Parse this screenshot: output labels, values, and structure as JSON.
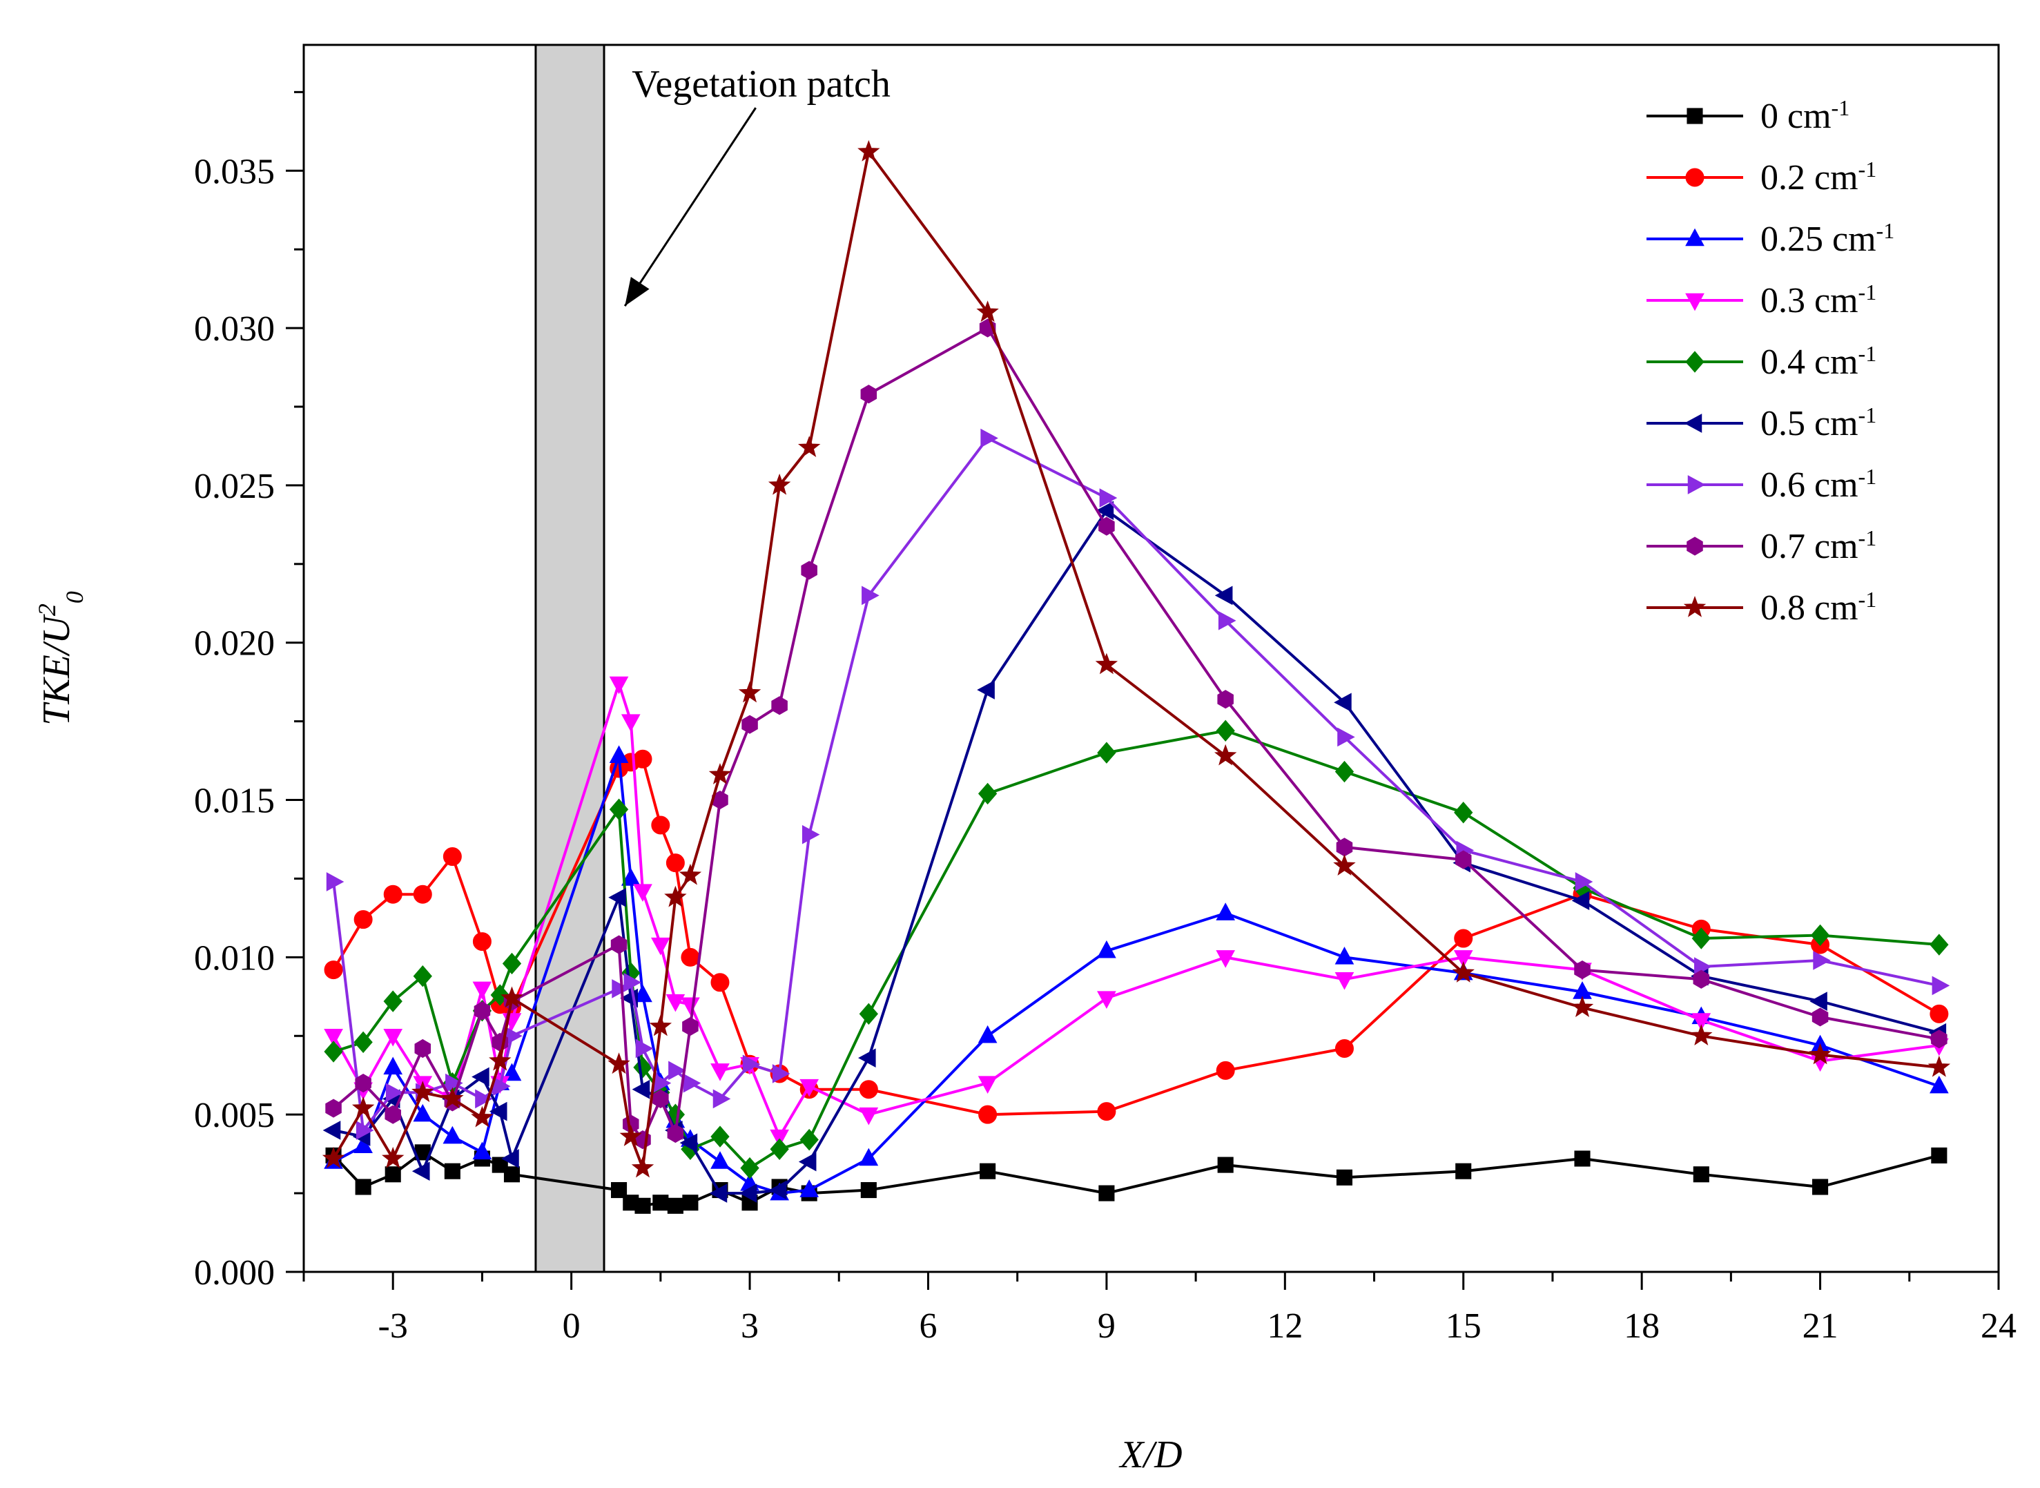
{
  "chart_data": {
    "type": "line",
    "xlabel": "X/D",
    "ylabel_main": "TKE/U",
    "ylabel_sup": "2",
    "ylabel_sub": "0",
    "xlim": [
      -4.5,
      24
    ],
    "ylim": [
      0,
      0.039
    ],
    "xticks": [
      -3,
      0,
      3,
      6,
      9,
      12,
      15,
      18,
      21,
      24
    ],
    "xtick_labels": [
      "-3",
      "0",
      "3",
      "6",
      "9",
      "12",
      "15",
      "18",
      "21",
      "24"
    ],
    "yticks": [
      0,
      0.005,
      0.01,
      0.015,
      0.02,
      0.025,
      0.03,
      0.035
    ],
    "ytick_labels": [
      "0.000",
      "0.005",
      "0.010",
      "0.015",
      "0.020",
      "0.025",
      "0.030",
      "0.035"
    ],
    "patch": {
      "label": "Vegetation patch",
      "x_from": -0.6,
      "x_to": 0.55,
      "color": "#d0d0d0"
    },
    "annotation": {
      "text": "Vegetation patch",
      "arrow_from": [
        3.1,
        0.037
      ],
      "arrow_to": [
        0.9,
        0.0307
      ]
    },
    "series": [
      {
        "name": "0 cm",
        "unit_sup": "-1",
        "color": "#000000",
        "marker": "square",
        "x": [
          -4,
          -3.5,
          -3,
          -2.5,
          -2,
          -1.5,
          -1.2,
          -1,
          0.8,
          1,
          1.2,
          1.5,
          1.75,
          2,
          2.5,
          3,
          3.5,
          4,
          5,
          7,
          9,
          11,
          13,
          15,
          17,
          19,
          21,
          23
        ],
        "y": [
          0.0037,
          0.0027,
          0.0031,
          0.0038,
          0.0032,
          0.0036,
          0.0034,
          0.0031,
          0.0026,
          0.0022,
          0.0021,
          0.0022,
          0.0021,
          0.0022,
          0.0026,
          0.0022,
          0.0027,
          0.0025,
          0.0026,
          0.0032,
          0.0025,
          0.0034,
          0.003,
          0.0032,
          0.0036,
          0.0031,
          0.0027,
          0.0037
        ]
      },
      {
        "name": "0.2 cm",
        "unit_sup": "-1",
        "color": "#ff0000",
        "marker": "circle",
        "x": [
          -4,
          -3.5,
          -3,
          -2.5,
          -2,
          -1.5,
          -1.2,
          -1,
          0.8,
          1,
          1.2,
          1.5,
          1.75,
          2,
          2.5,
          3,
          3.5,
          4,
          5,
          7,
          9,
          11,
          13,
          15,
          17,
          19,
          21,
          23
        ],
        "y": [
          0.0096,
          0.0112,
          0.012,
          0.012,
          0.0132,
          0.0105,
          0.0085,
          0.0084,
          0.016,
          0.0162,
          0.0163,
          0.0142,
          0.013,
          0.01,
          0.0092,
          0.0066,
          0.0063,
          0.0058,
          0.0058,
          0.005,
          0.0051,
          0.0064,
          0.0071,
          0.0106,
          0.012,
          0.0109,
          0.0104,
          0.0082
        ]
      },
      {
        "name": "0.25 cm",
        "unit_sup": "-1",
        "color": "#0000ff",
        "marker": "triangle-up",
        "x": [
          -4,
          -3.5,
          -3,
          -2.5,
          -2,
          -1.5,
          -1.2,
          -1,
          0.8,
          1,
          1.2,
          1.5,
          1.75,
          2,
          2.5,
          3,
          3.5,
          4,
          5,
          7,
          9,
          11,
          13,
          15,
          17,
          19,
          21,
          23
        ],
        "y": [
          0.0035,
          0.004,
          0.0065,
          0.005,
          0.0043,
          0.0038,
          0.006,
          0.0063,
          0.0164,
          0.0125,
          0.0088,
          0.006,
          0.0048,
          0.0042,
          0.0035,
          0.0028,
          0.0025,
          0.0026,
          0.0036,
          0.0075,
          0.0102,
          0.0114,
          0.01,
          0.0095,
          0.0089,
          0.0081,
          0.0072,
          0.0059
        ]
      },
      {
        "name": "0.3 cm",
        "unit_sup": "-1",
        "color": "#ff00ff",
        "marker": "triangle-down",
        "x": [
          -4,
          -3.5,
          -3,
          -2.5,
          -2,
          -1.5,
          -1.2,
          -1,
          0.8,
          1,
          1.2,
          1.5,
          1.75,
          2,
          2.5,
          3,
          3.5,
          4,
          5,
          7,
          9,
          11,
          13,
          15,
          17,
          19,
          21,
          23
        ],
        "y": [
          0.0075,
          0.0058,
          0.0075,
          0.006,
          0.0055,
          0.009,
          0.006,
          0.008,
          0.0187,
          0.0175,
          0.0121,
          0.0104,
          0.0086,
          0.0085,
          0.0064,
          0.0066,
          0.0043,
          0.0059,
          0.005,
          0.006,
          0.0087,
          0.01,
          0.0093,
          0.01,
          0.0096,
          0.008,
          0.0067,
          0.0072
        ]
      },
      {
        "name": "0.4 cm",
        "unit_sup": "-1",
        "color": "#008000",
        "marker": "diamond",
        "x": [
          -4,
          -3.5,
          -3,
          -2.5,
          -2,
          -1.5,
          -1.2,
          -1,
          0.8,
          1,
          1.2,
          1.5,
          1.75,
          2,
          2.5,
          3,
          3.5,
          4,
          5,
          7,
          9,
          11,
          13,
          15,
          17,
          19,
          21,
          23
        ],
        "y": [
          0.007,
          0.0073,
          0.0086,
          0.0094,
          0.006,
          0.0083,
          0.0088,
          0.0098,
          0.0147,
          0.0095,
          0.0065,
          0.0057,
          0.005,
          0.0039,
          0.0043,
          0.0033,
          0.0039,
          0.0042,
          0.0082,
          0.0152,
          0.0165,
          0.0172,
          0.0159,
          0.0146,
          0.0122,
          0.0106,
          0.0107,
          0.0104
        ]
      },
      {
        "name": "0.5 cm",
        "unit_sup": "-1",
        "color": "#00008b",
        "marker": "triangle-left",
        "x": [
          -4,
          -3.5,
          -3,
          -2.5,
          -2,
          -1.5,
          -1.2,
          -1,
          0.8,
          1,
          1.2,
          1.5,
          1.75,
          2,
          2.5,
          3,
          3.5,
          4,
          5,
          7,
          9,
          11,
          13,
          15,
          17,
          19,
          21,
          23
        ],
        "y": [
          0.0045,
          0.0043,
          0.0055,
          0.0032,
          0.0055,
          0.0062,
          0.0051,
          0.0036,
          0.0119,
          0.0087,
          0.0058,
          0.0055,
          0.0045,
          0.0041,
          0.0025,
          0.0025,
          0.0026,
          0.0035,
          0.0068,
          0.0185,
          0.0242,
          0.0215,
          0.0181,
          0.013,
          0.0118,
          0.0094,
          0.0086,
          0.0076
        ]
      },
      {
        "name": "0.6 cm",
        "unit_sup": "-1",
        "color": "#8a2be2",
        "marker": "triangle-right",
        "x": [
          -4,
          -3.5,
          -3,
          -2.5,
          -2,
          -1.5,
          -1.2,
          -1,
          0.8,
          1,
          1.2,
          1.5,
          1.75,
          2,
          2.5,
          3,
          3.5,
          4,
          5,
          7,
          9,
          11,
          13,
          15,
          17,
          19,
          21,
          23
        ],
        "y": [
          0.0124,
          0.0045,
          0.0057,
          0.0057,
          0.006,
          0.0055,
          0.0059,
          0.0075,
          0.009,
          0.0092,
          0.0071,
          0.006,
          0.0064,
          0.006,
          0.0055,
          0.0066,
          0.0063,
          0.0139,
          0.0215,
          0.0265,
          0.0246,
          0.0207,
          0.017,
          0.0134,
          0.0124,
          0.0097,
          0.0099,
          0.0091
        ]
      },
      {
        "name": "0.7 cm",
        "unit_sup": "-1",
        "color": "#8b008b",
        "marker": "hexagon",
        "x": [
          -4,
          -3.5,
          -3,
          -2.5,
          -2,
          -1.5,
          -1.2,
          -1,
          0.8,
          1,
          1.2,
          1.5,
          1.75,
          2,
          2.5,
          3,
          3.5,
          4,
          5,
          7,
          9,
          11,
          13,
          15,
          17,
          19,
          21,
          23
        ],
        "y": [
          0.0052,
          0.006,
          0.005,
          0.0071,
          0.0054,
          0.0083,
          0.0073,
          0.0086,
          0.0104,
          0.0047,
          0.0042,
          0.0055,
          0.0044,
          0.0078,
          0.015,
          0.0174,
          0.018,
          0.0223,
          0.0279,
          0.03,
          0.0237,
          0.0182,
          0.0135,
          0.0131,
          0.0096,
          0.0093,
          0.0081,
          0.0074
        ]
      },
      {
        "name": "0.8 cm",
        "unit_sup": "-1",
        "color": "#8b0000",
        "marker": "star",
        "x": [
          -4,
          -3.5,
          -3,
          -2.5,
          -2,
          -1.5,
          -1.2,
          -1,
          0.8,
          1,
          1.2,
          1.5,
          1.75,
          2,
          2.5,
          3,
          3.5,
          4,
          5,
          7,
          9,
          11,
          13,
          15,
          17,
          19,
          21,
          23
        ],
        "y": [
          0.0036,
          0.0052,
          0.0036,
          0.0057,
          0.0055,
          0.0049,
          0.0067,
          0.0087,
          0.0066,
          0.0043,
          0.0033,
          0.0078,
          0.0119,
          0.0126,
          0.0158,
          0.0184,
          0.025,
          0.0262,
          0.0356,
          0.0305,
          0.0193,
          0.0164,
          0.0129,
          0.0095,
          0.0084,
          0.0075,
          0.0069,
          0.0065
        ]
      }
    ],
    "legend": {
      "position": "top-right"
    }
  }
}
